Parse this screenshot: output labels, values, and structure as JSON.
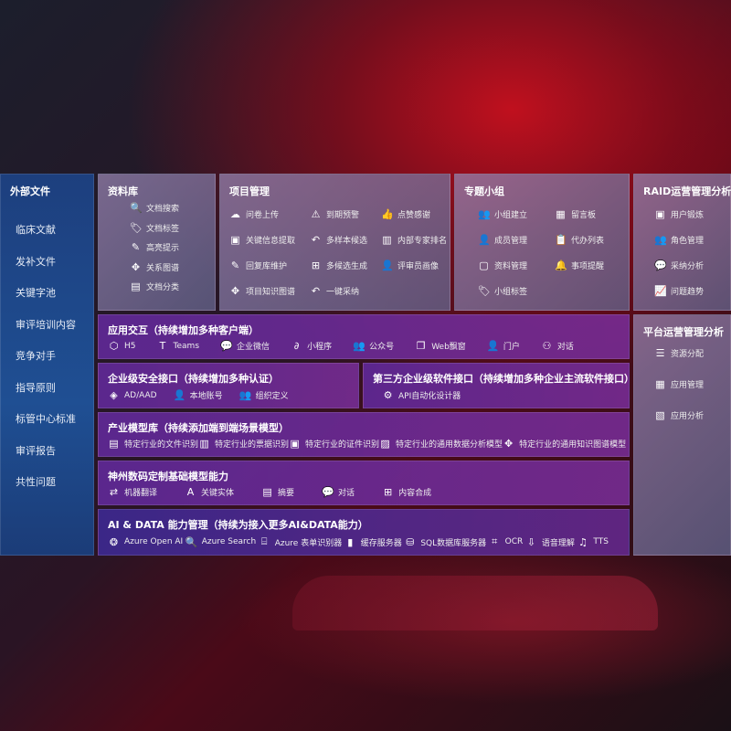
{
  "sidebar": {
    "title": "外部文件",
    "items": [
      "临床文献",
      "发补文件",
      "关键字池",
      "审评培训内容",
      "竞争对手",
      "指导原则",
      "标管中心标准",
      "审评报告",
      "共性问题"
    ]
  },
  "library": {
    "title": "资料库",
    "items": [
      {
        "label": "文档搜索",
        "icon": "document-search-icon",
        "glyph": "🔍"
      },
      {
        "label": "文档标签",
        "icon": "tag-icon",
        "glyph": "🏷"
      },
      {
        "label": "高亮提示",
        "icon": "pen-icon",
        "glyph": "✎"
      },
      {
        "label": "关系图谱",
        "icon": "graph-icon",
        "glyph": "✥"
      },
      {
        "label": "文档分类",
        "icon": "document-stack-icon",
        "glyph": "▤"
      }
    ]
  },
  "project": {
    "title": "项目管理",
    "items": [
      {
        "label": "问卷上传",
        "icon": "cloud-upload-icon",
        "glyph": "☁"
      },
      {
        "label": "到期预警",
        "icon": "alarm-icon",
        "glyph": "⚠"
      },
      {
        "label": "点赞感谢",
        "icon": "thumbs-up-icon",
        "glyph": "👍"
      },
      {
        "label": "关键信息提取",
        "icon": "window-icon",
        "glyph": "▣"
      },
      {
        "label": "多样本候选",
        "icon": "reply-icon",
        "glyph": "↶"
      },
      {
        "label": "内部专家排名",
        "icon": "ranking-icon",
        "glyph": "▥"
      },
      {
        "label": "回复库维护",
        "icon": "edit-icon",
        "glyph": "✎"
      },
      {
        "label": "多候选生成",
        "icon": "puzzle-icon",
        "glyph": "⊞"
      },
      {
        "label": "评审员画像",
        "icon": "person-icon",
        "glyph": "👤"
      },
      {
        "label": "项目知识图谱",
        "icon": "network-icon",
        "glyph": "✥"
      },
      {
        "label": "一键采纳",
        "icon": "undo-icon",
        "glyph": "↶"
      }
    ]
  },
  "group": {
    "title": "专题小组",
    "items": [
      {
        "label": "小组建立",
        "icon": "users-icon",
        "glyph": "👥"
      },
      {
        "label": "留言板",
        "icon": "bbs-icon",
        "glyph": "▦"
      },
      {
        "label": "成员管理",
        "icon": "user-add-icon",
        "glyph": "👤"
      },
      {
        "label": "代办列表",
        "icon": "clipboard-icon",
        "glyph": "📋"
      },
      {
        "label": "资料管理",
        "icon": "folder-icon",
        "glyph": "▢"
      },
      {
        "label": "事项提醒",
        "icon": "bell-icon",
        "glyph": "🔔"
      },
      {
        "label": "小组标签",
        "icon": "tag-icon",
        "glyph": "🏷"
      }
    ]
  },
  "raid": {
    "title": "RAID运营管理分析",
    "items": [
      {
        "label": "用户锻炼",
        "icon": "id-card-icon",
        "glyph": "▣"
      },
      {
        "label": "角色管理",
        "icon": "users-icon",
        "glyph": "👥"
      },
      {
        "label": "采纳分析",
        "icon": "qa-icon",
        "glyph": "💬"
      },
      {
        "label": "问题趋势",
        "icon": "trend-icon",
        "glyph": "📈"
      }
    ]
  },
  "platform": {
    "title": "平台运营管理分析",
    "items": [
      {
        "label": "资源分配",
        "icon": "checklist-icon",
        "glyph": "☰"
      },
      {
        "label": "应用管理",
        "icon": "apps-icon",
        "glyph": "▦"
      },
      {
        "label": "应用分析",
        "icon": "analysis-icon",
        "glyph": "▧"
      }
    ]
  },
  "interaction": {
    "title": "应用交互（持续增加多种客户端）",
    "items": [
      {
        "label": "H5",
        "icon": "html5-icon",
        "glyph": "⬡"
      },
      {
        "label": "Teams",
        "icon": "teams-icon",
        "glyph": "T"
      },
      {
        "label": "企业微信",
        "icon": "wecom-icon",
        "glyph": "💬"
      },
      {
        "label": "小程序",
        "icon": "miniprogram-icon",
        "glyph": "∂"
      },
      {
        "label": "公众号",
        "icon": "official-account-icon",
        "glyph": "👥"
      },
      {
        "label": "Web飘窗",
        "icon": "window-icon",
        "glyph": "❐"
      },
      {
        "label": "门户",
        "icon": "portal-icon",
        "glyph": "👤"
      },
      {
        "label": "对话",
        "icon": "chat-users-icon",
        "glyph": "⚇"
      }
    ]
  },
  "security": {
    "title": "企业级安全接口（持续增加多种认证）",
    "items": [
      {
        "label": "AD/AAD",
        "icon": "diamond-icon",
        "glyph": "◈"
      },
      {
        "label": "本地账号",
        "icon": "user-lock-icon",
        "glyph": "👤"
      },
      {
        "label": "组织定义",
        "icon": "org-icon",
        "glyph": "👥"
      }
    ]
  },
  "thirdparty": {
    "title": "第三方企业级软件接口（持续增加多种企业主流软件接口）",
    "items": [
      {
        "label": "API自动化设计器",
        "icon": "gear-icon",
        "glyph": "⚙"
      }
    ]
  },
  "industry": {
    "title": "产业模型库（持续添加端到端场景模型）",
    "items": [
      {
        "label": "特定行业的文件识别",
        "icon": "file-icon",
        "glyph": "▤"
      },
      {
        "label": "特定行业的票据识别",
        "icon": "receipt-icon",
        "glyph": "▥"
      },
      {
        "label": "特定行业的证件识别",
        "icon": "id-card-icon",
        "glyph": "▣"
      },
      {
        "label": "特定行业的通用数据分析模型",
        "icon": "chart-icon",
        "glyph": "▨"
      },
      {
        "label": "特定行业的通用知识图谱模型",
        "icon": "network-icon",
        "glyph": "✥"
      }
    ]
  },
  "base": {
    "title": "神州数码定制基础模型能力",
    "items": [
      {
        "label": "机器翻译",
        "icon": "translate-icon",
        "glyph": "⇄"
      },
      {
        "label": "关键实体",
        "icon": "entity-icon",
        "glyph": "A"
      },
      {
        "label": "摘要",
        "icon": "summary-icon",
        "glyph": "▤"
      },
      {
        "label": "对话",
        "icon": "chat-icon",
        "glyph": "💬"
      },
      {
        "label": "内容合成",
        "icon": "puzzle-icon",
        "glyph": "⊞"
      }
    ]
  },
  "aidata": {
    "title": "AI & DATA 能力管理（持续为接入更多AI&DATA能力）",
    "items": [
      {
        "label": "Azure Open AI",
        "icon": "openai-icon",
        "glyph": "❂"
      },
      {
        "label": "Azure Search",
        "icon": "search-doc-icon",
        "glyph": "🔍"
      },
      {
        "label": "Azure 表单识别器",
        "icon": "form-icon",
        "glyph": "⌸"
      },
      {
        "label": "缓存服务器",
        "icon": "server-icon",
        "glyph": "▮"
      },
      {
        "label": "SQL数据库服务器",
        "icon": "database-icon",
        "glyph": "⛁"
      },
      {
        "label": "OCR",
        "icon": "ocr-icon",
        "glyph": "⌗"
      },
      {
        "label": "语音理解",
        "icon": "voice-icon",
        "glyph": "⇩"
      },
      {
        "label": "TTS",
        "icon": "tts-icon",
        "glyph": "♫"
      }
    ]
  }
}
